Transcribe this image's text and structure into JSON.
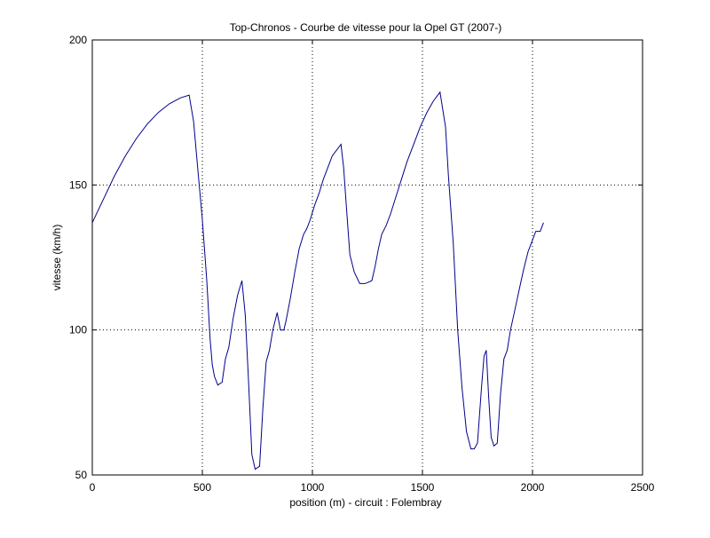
{
  "chart_data": {
    "type": "line",
    "title": "Top-Chronos - Courbe de vitesse pour la Opel GT (2007-)",
    "xlabel": "position (m) - circuit : Folembray",
    "ylabel": "vitesse (km/h)",
    "xlim": [
      0,
      2500
    ],
    "ylim": [
      50,
      200
    ],
    "xticks": [
      0,
      500,
      1000,
      1500,
      2000,
      2500
    ],
    "yticks": [
      50,
      100,
      150,
      200
    ],
    "grid": "dotted",
    "line_color": "#00008b",
    "series": [
      {
        "x": [
          0,
          50,
          100,
          150,
          200,
          250,
          300,
          350,
          400,
          440,
          460,
          480,
          500,
          520,
          535,
          545,
          555,
          570,
          590,
          605,
          620,
          640,
          660,
          680,
          695,
          710,
          725,
          740,
          760,
          775,
          790,
          805,
          820,
          840,
          855,
          870,
          880,
          900,
          920,
          940,
          960,
          975,
          990,
          1010,
          1030,
          1050,
          1070,
          1090,
          1110,
          1130,
          1142,
          1155,
          1170,
          1190,
          1215,
          1240,
          1270,
          1285,
          1300,
          1315,
          1335,
          1355,
          1380,
          1405,
          1430,
          1460,
          1490,
          1520,
          1550,
          1580,
          1605,
          1618,
          1640,
          1660,
          1680,
          1700,
          1720,
          1735,
          1750,
          1768,
          1780,
          1790,
          1800,
          1812,
          1825,
          1840,
          1855,
          1870,
          1885,
          1900,
          1920,
          1940,
          1960,
          1980,
          2000,
          2015,
          2035,
          2050
        ],
        "y": [
          137,
          145,
          153,
          160,
          166,
          171,
          175,
          178,
          180,
          181,
          172,
          155,
          138,
          117,
          97,
          88,
          84,
          81,
          82,
          90,
          94,
          104,
          112,
          117,
          105,
          82,
          57,
          52,
          53,
          73,
          89,
          93,
          100,
          106,
          100,
          100,
          103,
          111,
          120,
          128,
          133,
          135,
          138,
          143,
          147,
          152,
          156,
          160,
          162,
          164,
          156,
          142,
          126,
          120,
          116,
          116,
          117,
          122,
          128,
          133,
          136,
          140,
          146,
          152,
          158,
          164,
          170,
          175,
          179,
          182,
          170,
          153,
          130,
          100,
          80,
          65,
          59,
          59,
          61,
          80,
          91,
          93,
          78,
          63,
          60,
          61,
          78,
          90,
          93,
          100,
          107,
          114,
          121,
          127,
          131,
          134,
          134,
          137
        ]
      }
    ]
  }
}
